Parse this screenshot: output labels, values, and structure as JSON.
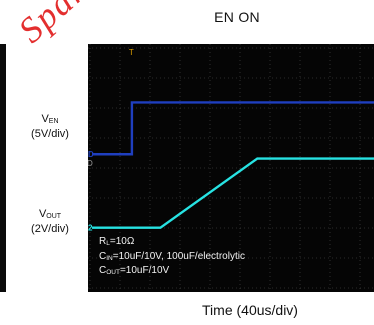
{
  "watermark": "Spare",
  "chart_data": {
    "type": "line",
    "title": "EN ON",
    "xlabel": "Time (40us/div)",
    "x_divisions": 10,
    "y_divisions": 8,
    "series": [
      {
        "name": "VEN",
        "name_main": "V",
        "name_sub": "EN",
        "scale": "(5V/div)",
        "marker": "D",
        "color": "#1f3fbf",
        "x": [
          0,
          1.4,
          1.4,
          10
        ],
        "y": [
          3.6,
          3.6,
          6.0,
          6.0
        ]
      },
      {
        "name": "VOUT",
        "name_main": "V",
        "name_sub": "OUT",
        "scale": "(2V/div)",
        "marker": "2",
        "color": "#27e3e3",
        "x": [
          0,
          2.4,
          5.8,
          10
        ],
        "y": [
          0.2,
          0.2,
          3.4,
          3.4
        ]
      }
    ],
    "trigger_marker": "T",
    "mid_marker": "D"
  },
  "conditions": {
    "rl_main": "R",
    "rl_sub": "L",
    "rl_val": "=10Ω",
    "cin_main": "C",
    "cin_sub": "IN",
    "cin_val": "=10uF/10V, 100uF/electrolytic",
    "cout_main": "C",
    "cout_sub": "OUT",
    "cout_val": "=10uF/10V"
  }
}
